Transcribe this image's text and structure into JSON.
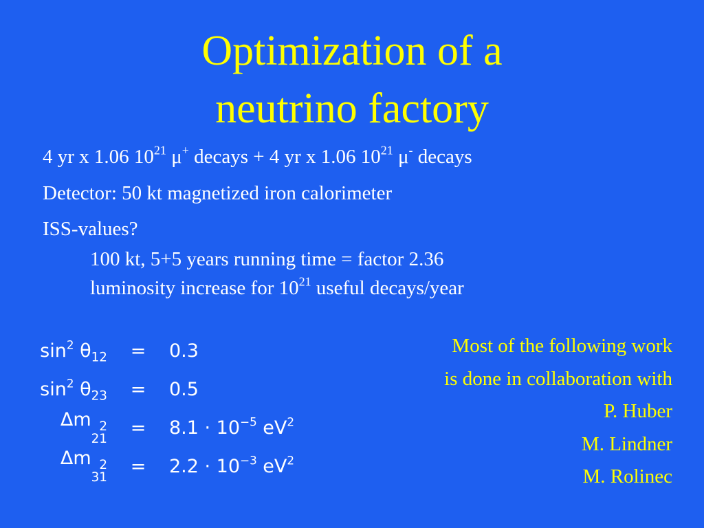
{
  "title": [
    "Optimization of a",
    "neutrino factory"
  ],
  "bullets": [
    [
      {
        "base": "4 yr x 1.06 10",
        "sup": "21"
      },
      {
        "base": " μ",
        "sup": "+"
      },
      {
        "base": " decays + 4 yr x 1.06 10",
        "sup": "21"
      },
      {
        "base": " μ",
        "sup": "-"
      },
      {
        "base": " decays"
      }
    ],
    [
      {
        "base": "Detector: 50 kt magnetized iron calorimeter"
      }
    ],
    [
      {
        "base": "ISS-values?"
      }
    ]
  ],
  "sub_bullets": [
    [
      {
        "base": "100 kt, 5+5 years running time = factor 2.36"
      }
    ],
    [
      {
        "base": "luminosity increase for 10",
        "sup": "21"
      },
      {
        "base": " useful decays/year"
      }
    ]
  ],
  "equations": [
    {
      "lhs": [
        {
          "base": "sin",
          "sup": "2"
        },
        {
          "base": " θ",
          "sub": "12"
        }
      ],
      "rel": "=",
      "rhs": [
        {
          "base": "0.3"
        }
      ]
    },
    {
      "lhs": [
        {
          "base": "sin",
          "sup": "2"
        },
        {
          "base": " θ",
          "sub": "23"
        }
      ],
      "rel": "=",
      "rhs": [
        {
          "base": "0.5"
        }
      ]
    },
    {
      "lhs": [
        {
          "base": "Δm",
          "sup": "2",
          "sub": "21"
        }
      ],
      "rel": "=",
      "rhs": [
        {
          "base": "8.1 · 10",
          "sup": "−5"
        },
        {
          "base": " eV",
          "sup": "2"
        }
      ]
    },
    {
      "lhs": [
        {
          "base": "Δm",
          "sup": "2",
          "sub": "31"
        }
      ],
      "rel": "=",
      "rhs": [
        {
          "base": "2.2 · 10",
          "sup": "−3"
        },
        {
          "base": " eV",
          "sup": "2"
        }
      ]
    }
  ],
  "note": [
    "Most of the following work",
    "is done in collaboration with",
    "P. Huber",
    "M. Lindner",
    "M. Rolinec"
  ]
}
